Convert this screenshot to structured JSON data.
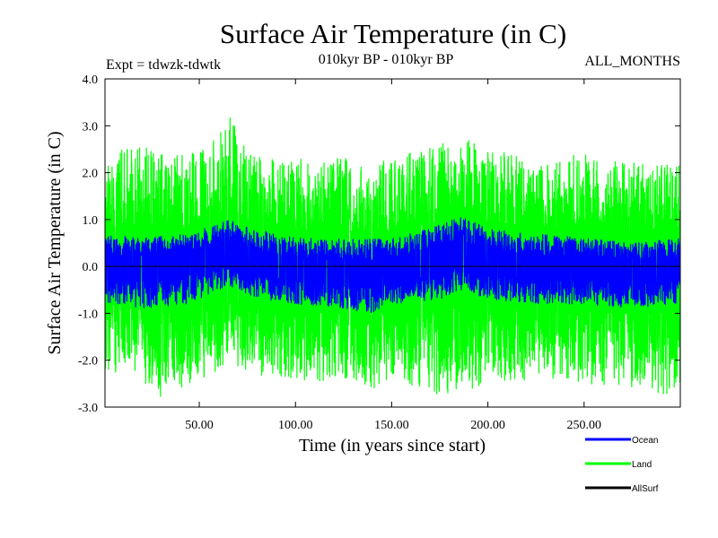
{
  "chart_data": {
    "type": "line",
    "title": "Surface Air Temperature (in C)",
    "subtitle_left": "Expt = tdwzk-tdwtk",
    "subtitle_center": "010kyr BP - 010kyr BP",
    "subtitle_right": "ALL_MONTHS",
    "xlabel": "Time (in years since start)",
    "ylabel": "Surface Air Temperature (in C)",
    "xlim": [
      1,
      300
    ],
    "ylim": [
      -3.0,
      4.0
    ],
    "xticks": [
      50,
      100,
      150,
      200,
      250
    ],
    "xtick_labels": [
      "50.00",
      "100.00",
      "150.00",
      "200.00",
      "250.00"
    ],
    "yticks": [
      -3,
      -2,
      -1,
      0,
      1,
      2,
      3,
      4
    ],
    "ytick_labels": [
      "-3.0",
      "-2.0",
      "-1.0",
      "0.0",
      "1.0",
      "2.0",
      "3.0",
      "4.0"
    ],
    "zero_line": 0.0,
    "series": [
      {
        "name": "Land",
        "color": "#00ff00",
        "sampling": "monthly",
        "envelope_upper_anchors": [
          [
            1,
            2.1
          ],
          [
            10,
            2.5
          ],
          [
            20,
            2.6
          ],
          [
            30,
            2.4
          ],
          [
            45,
            2.4
          ],
          [
            60,
            2.8
          ],
          [
            65,
            3.5
          ],
          [
            75,
            2.4
          ],
          [
            100,
            2.3
          ],
          [
            125,
            2.3
          ],
          [
            150,
            2.3
          ],
          [
            175,
            2.6
          ],
          [
            185,
            2.8
          ],
          [
            200,
            2.5
          ],
          [
            225,
            2.3
          ],
          [
            250,
            2.4
          ],
          [
            275,
            2.2
          ],
          [
            300,
            2.2
          ]
        ],
        "envelope_lower_anchors": [
          [
            1,
            -2.2
          ],
          [
            10,
            -2.3
          ],
          [
            25,
            -2.6
          ],
          [
            30,
            -2.8
          ],
          [
            50,
            -2.4
          ],
          [
            65,
            -2.2
          ],
          [
            75,
            -2.3
          ],
          [
            100,
            -2.4
          ],
          [
            125,
            -2.5
          ],
          [
            140,
            -2.7
          ],
          [
            150,
            -2.4
          ],
          [
            175,
            -2.8
          ],
          [
            200,
            -2.5
          ],
          [
            225,
            -2.4
          ],
          [
            250,
            -2.5
          ],
          [
            275,
            -2.6
          ],
          [
            290,
            -2.8
          ],
          [
            300,
            -2.6
          ]
        ],
        "center_anchors": [
          [
            1,
            0.0
          ],
          [
            40,
            -0.05
          ],
          [
            65,
            0.15
          ],
          [
            100,
            -0.05
          ],
          [
            140,
            -0.1
          ],
          [
            180,
            0.1
          ],
          [
            220,
            0.0
          ],
          [
            260,
            -0.05
          ],
          [
            300,
            0.0
          ]
        ]
      },
      {
        "name": "Ocean",
        "color": "#0000ff",
        "sampling": "monthly",
        "envelope_upper_anchors": [
          [
            1,
            0.7
          ],
          [
            20,
            0.6
          ],
          [
            45,
            0.7
          ],
          [
            65,
            1.0
          ],
          [
            80,
            0.8
          ],
          [
            100,
            0.6
          ],
          [
            125,
            0.6
          ],
          [
            150,
            0.6
          ],
          [
            175,
            0.9
          ],
          [
            185,
            1.1
          ],
          [
            200,
            0.8
          ],
          [
            225,
            0.7
          ],
          [
            250,
            0.6
          ],
          [
            275,
            0.5
          ],
          [
            300,
            0.6
          ]
        ],
        "envelope_lower_anchors": [
          [
            1,
            -0.8
          ],
          [
            25,
            -0.9
          ],
          [
            45,
            -0.8
          ],
          [
            65,
            -0.4
          ],
          [
            80,
            -0.7
          ],
          [
            100,
            -0.8
          ],
          [
            125,
            -0.9
          ],
          [
            140,
            -1.0
          ],
          [
            150,
            -0.8
          ],
          [
            175,
            -0.7
          ],
          [
            185,
            -0.5
          ],
          [
            200,
            -0.7
          ],
          [
            225,
            -0.8
          ],
          [
            250,
            -0.8
          ],
          [
            275,
            -0.9
          ],
          [
            300,
            -0.8
          ]
        ],
        "center_anchors": [
          [
            1,
            -0.05
          ],
          [
            65,
            0.25
          ],
          [
            100,
            -0.05
          ],
          [
            140,
            -0.15
          ],
          [
            185,
            0.25
          ],
          [
            220,
            0.0
          ],
          [
            300,
            -0.05
          ]
        ]
      },
      {
        "name": "AllSurf",
        "color": "#000000",
        "sampling": "monthly",
        "envelope_upper_anchors": [
          [
            1,
            0.0
          ],
          [
            300,
            0.0
          ]
        ],
        "envelope_lower_anchors": [
          [
            1,
            0.0
          ],
          [
            300,
            0.0
          ]
        ],
        "center_anchors": [
          [
            1,
            0.0
          ],
          [
            300,
            0.0
          ]
        ]
      }
    ],
    "legend": {
      "placement": "bottom-right",
      "entries": [
        "Ocean",
        "Land",
        "AllSurf"
      ]
    }
  }
}
